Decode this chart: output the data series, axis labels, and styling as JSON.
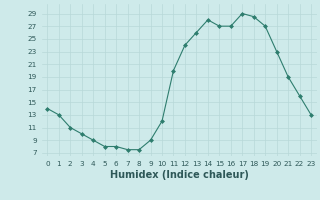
{
  "xlabel": "Humidex (Indice chaleur)",
  "x_values": [
    0,
    1,
    2,
    3,
    4,
    5,
    6,
    7,
    8,
    9,
    10,
    11,
    12,
    13,
    14,
    15,
    16,
    17,
    18,
    19,
    20,
    21,
    22,
    23
  ],
  "y_values_plot": [
    14,
    13,
    11,
    10,
    9,
    8,
    8,
    7.5,
    7.5,
    9,
    12,
    20,
    24,
    26,
    28,
    27,
    27,
    29,
    28.5,
    27,
    23,
    19,
    16,
    13
  ],
  "yticks": [
    7,
    9,
    11,
    13,
    15,
    17,
    19,
    21,
    23,
    25,
    27,
    29
  ],
  "ylim": [
    6.5,
    30.5
  ],
  "xlim": [
    -0.5,
    23.5
  ],
  "line_color": "#2e7d6e",
  "marker": "D",
  "marker_size": 2.0,
  "bg_color": "#ceeaea",
  "grid_color": "#b8d8d8",
  "xlabel_fontsize": 7,
  "tick_fontsize": 5.2
}
